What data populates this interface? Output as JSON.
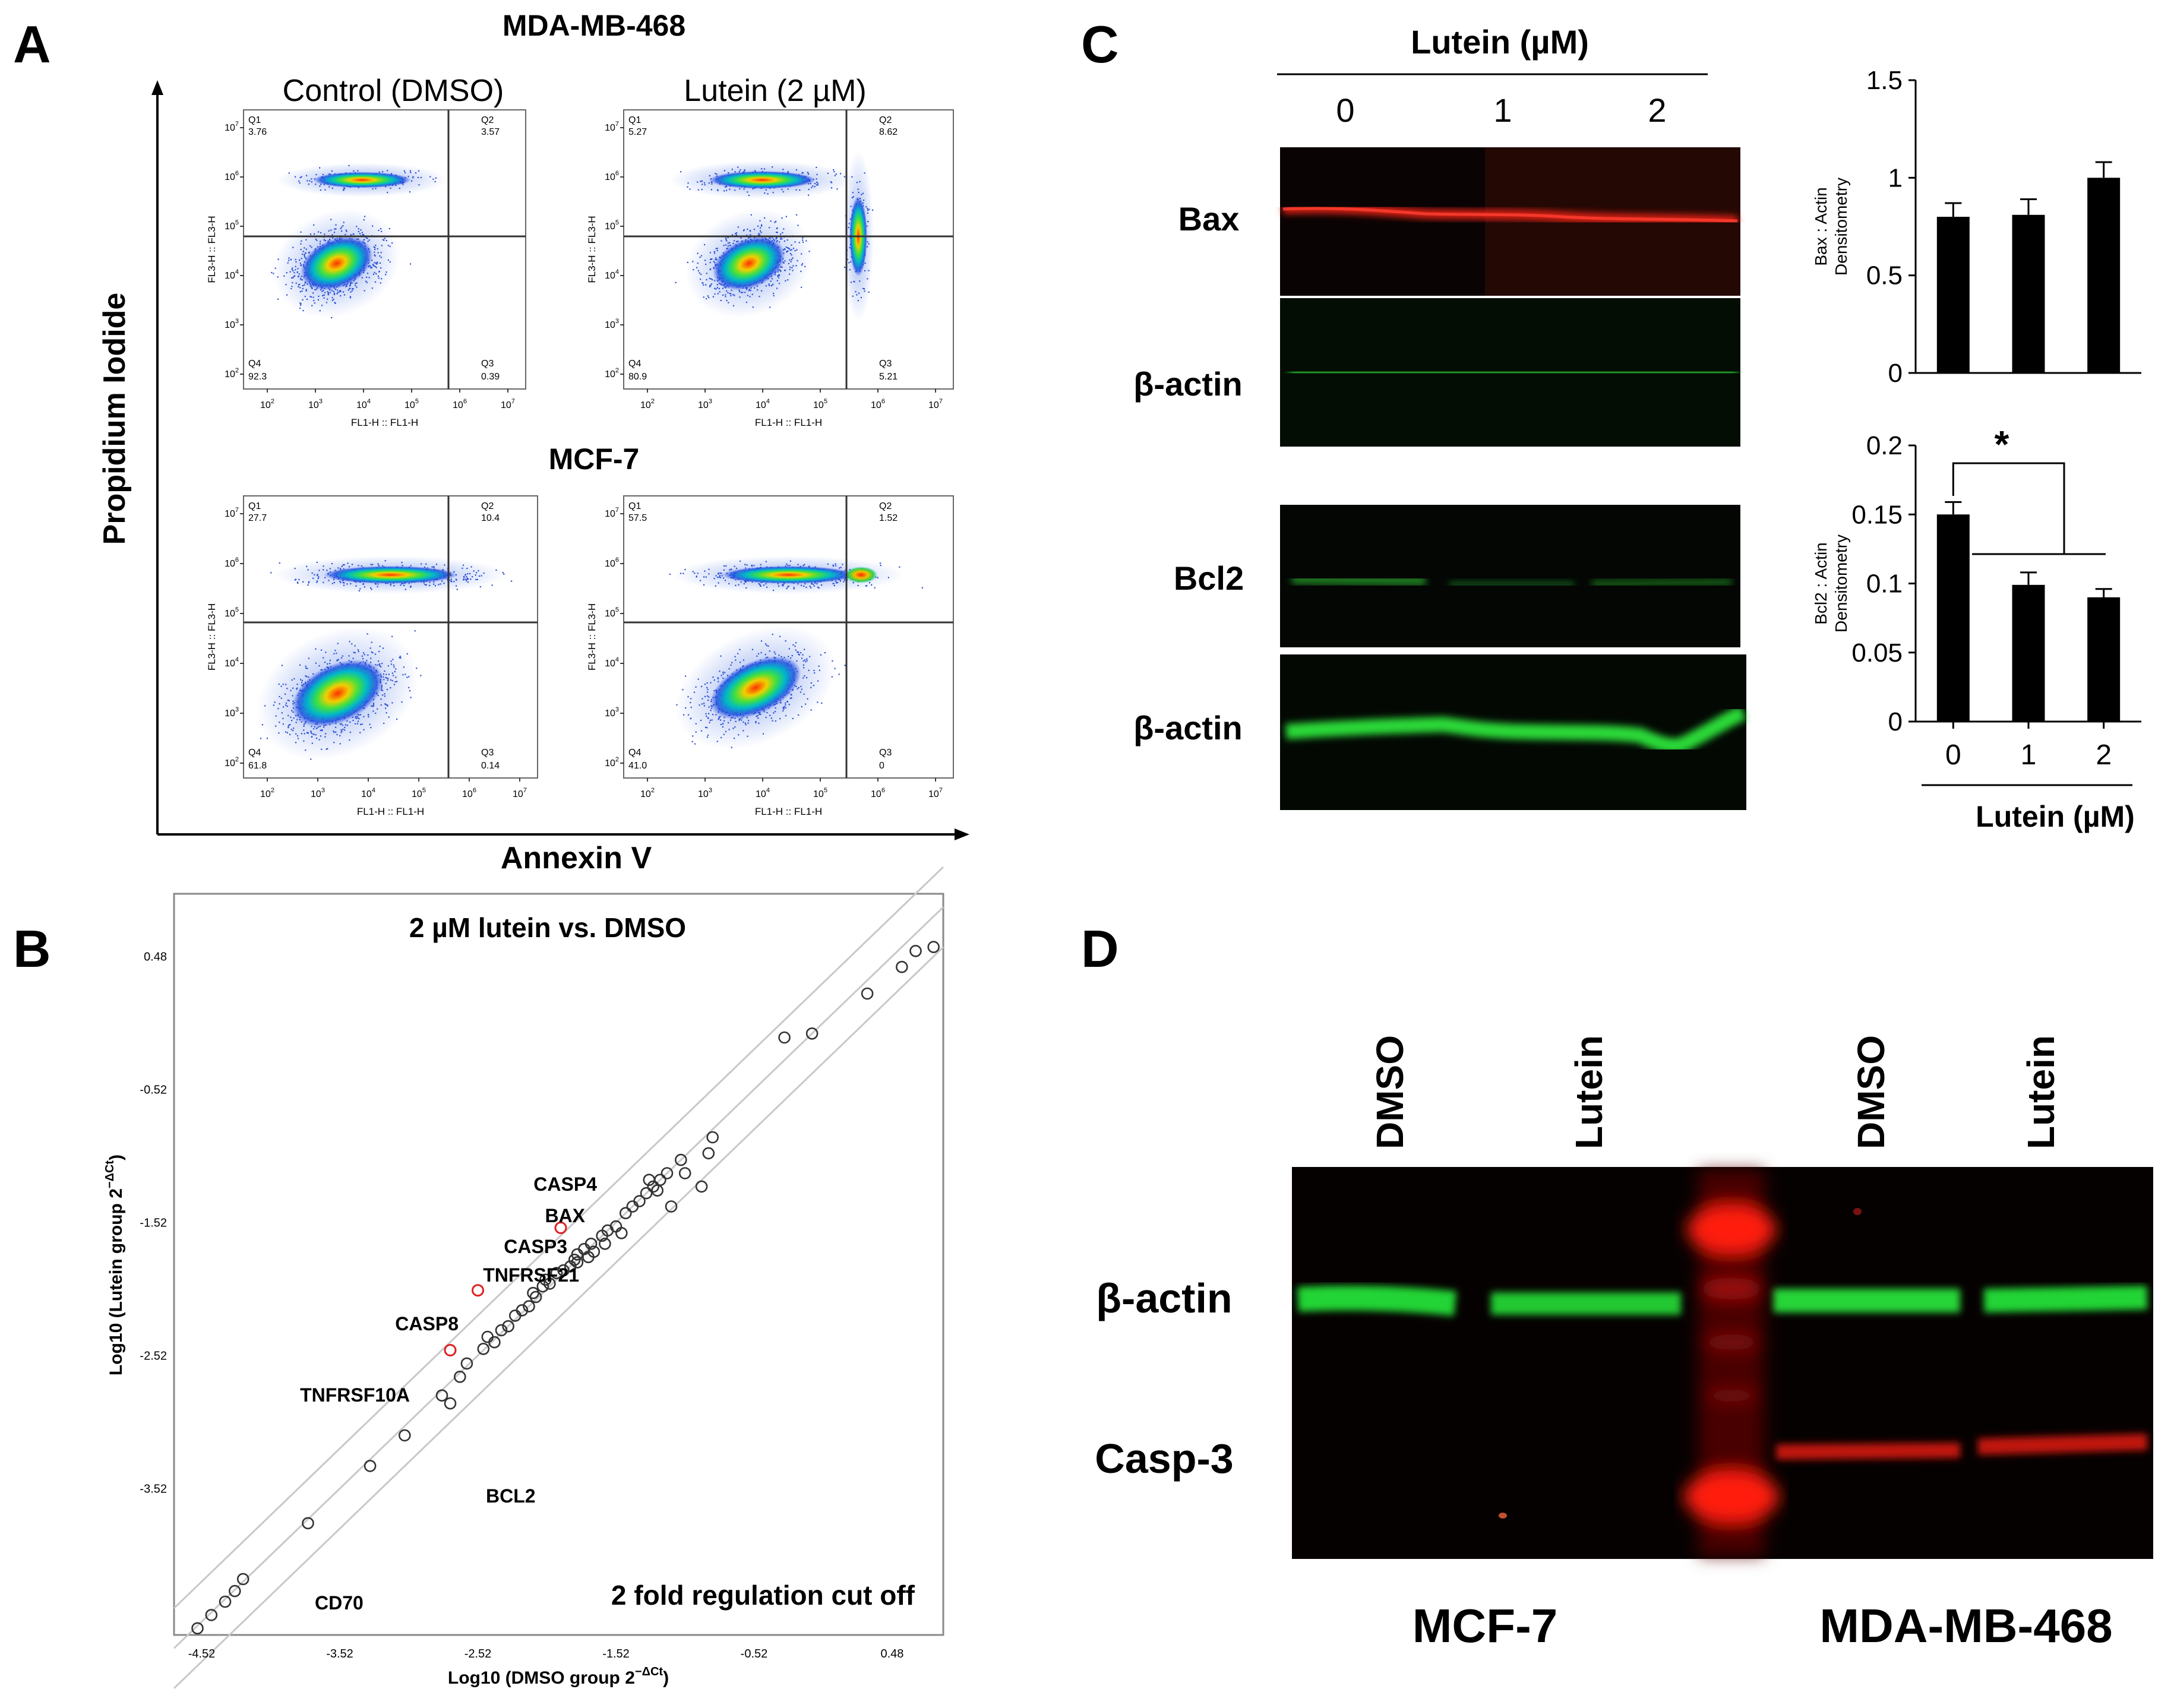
{
  "panel_labels": {
    "a": "A",
    "b": "B",
    "c": "C",
    "d": "D"
  },
  "panel_a": {
    "title_top": "MDA-MB-468",
    "title_bottom": "MCF-7",
    "col_left": "Control (DMSO)",
    "col_right": "Lutein (2 µM)",
    "y_axis": "Propidium Iodide",
    "x_axis": "Annexin V",
    "plot_x_label": "FL1-H :: FL1-H",
    "plot_y_label": "FL3-H :: FL3-H",
    "tick_base": "10",
    "tick_exps": [
      "2",
      "3",
      "4",
      "5",
      "6",
      "7"
    ],
    "quadrant_names": [
      "Q1",
      "Q2",
      "Q3",
      "Q4"
    ],
    "plots": [
      {
        "q1": "3.76",
        "q2": "3.57",
        "q3": "0.39",
        "q4": "92.3"
      },
      {
        "q1": "5.27",
        "q2": "8.62",
        "q3": "5.21",
        "q4": "80.9"
      },
      {
        "q1": "27.7",
        "q2": "10.4",
        "q3": "0.14",
        "q4": "61.8"
      },
      {
        "q1": "57.5",
        "q2": "1.52",
        "q3": "0",
        "q4": "41.0"
      }
    ]
  },
  "panel_b": {
    "title": "2 µM lutein vs. DMSO",
    "cutoff": "2 fold regulation cut off",
    "x_label": "Log10 (DMSO group 2",
    "x_label_sup": "−ΔCt",
    "x_label_end": ")",
    "y_label": "Log10 (Lutein group 2",
    "y_label_sup": "−ΔCt",
    "y_label_end": ")",
    "x_ticks": [
      "-4.52",
      "-3.52",
      "-2.52",
      "-1.52",
      "-0.52",
      "0.48"
    ],
    "y_ticks": [
      "0.48",
      "-0.52",
      "-1.52",
      "-2.52",
      "-3.52"
    ],
    "genes": [
      "CASP4",
      "BAX",
      "CASP3",
      "TNFRSF21",
      "CASP8",
      "TNFRSF10A",
      "BCL2",
      "CD70"
    ]
  },
  "panel_c": {
    "header": "Lutein (µM)",
    "lanes": [
      "0",
      "1",
      "2"
    ],
    "blot_labels": [
      "Bax",
      "β-actin",
      "Bcl2",
      "β-actin"
    ],
    "chart_data": [
      {
        "type": "bar",
        "categories": [
          "0",
          "1",
          "2"
        ],
        "values": [
          0.8,
          0.81,
          1.0
        ],
        "errors": [
          0.07,
          0.08,
          0.08
        ],
        "ylim": [
          0,
          1.5
        ],
        "yticks": [
          "0",
          "0.5",
          "1",
          "1.5"
        ],
        "ylabel": "Bax : Actin",
        "ylabel2": "Densitometry"
      },
      {
        "type": "bar",
        "categories": [
          "0",
          "1",
          "2"
        ],
        "values": [
          0.15,
          0.099,
          0.09
        ],
        "errors": [
          0.009,
          0.009,
          0.006
        ],
        "ylim": [
          0,
          0.2
        ],
        "yticks": [
          "0",
          "0.05",
          "0.1",
          "0.15",
          "0.2"
        ],
        "ylabel": "Bcl2 : Actin",
        "ylabel2": "Densitometry",
        "annotation": "*",
        "xlabel": "Lutein (µM)"
      }
    ]
  },
  "panel_d": {
    "lanes": [
      "DMSO",
      "Lutein",
      "DMSO",
      "Lutein"
    ],
    "row_labels": [
      "β-actin",
      "Casp-3"
    ],
    "cell_lines": [
      "MCF-7",
      "MDA-MB-468"
    ]
  },
  "colors": {
    "red_band": "#e01010",
    "green_band": "#22cc33",
    "blot_bg": "#050505",
    "bar": "#000000",
    "gray_line": "#c8c8c8"
  }
}
